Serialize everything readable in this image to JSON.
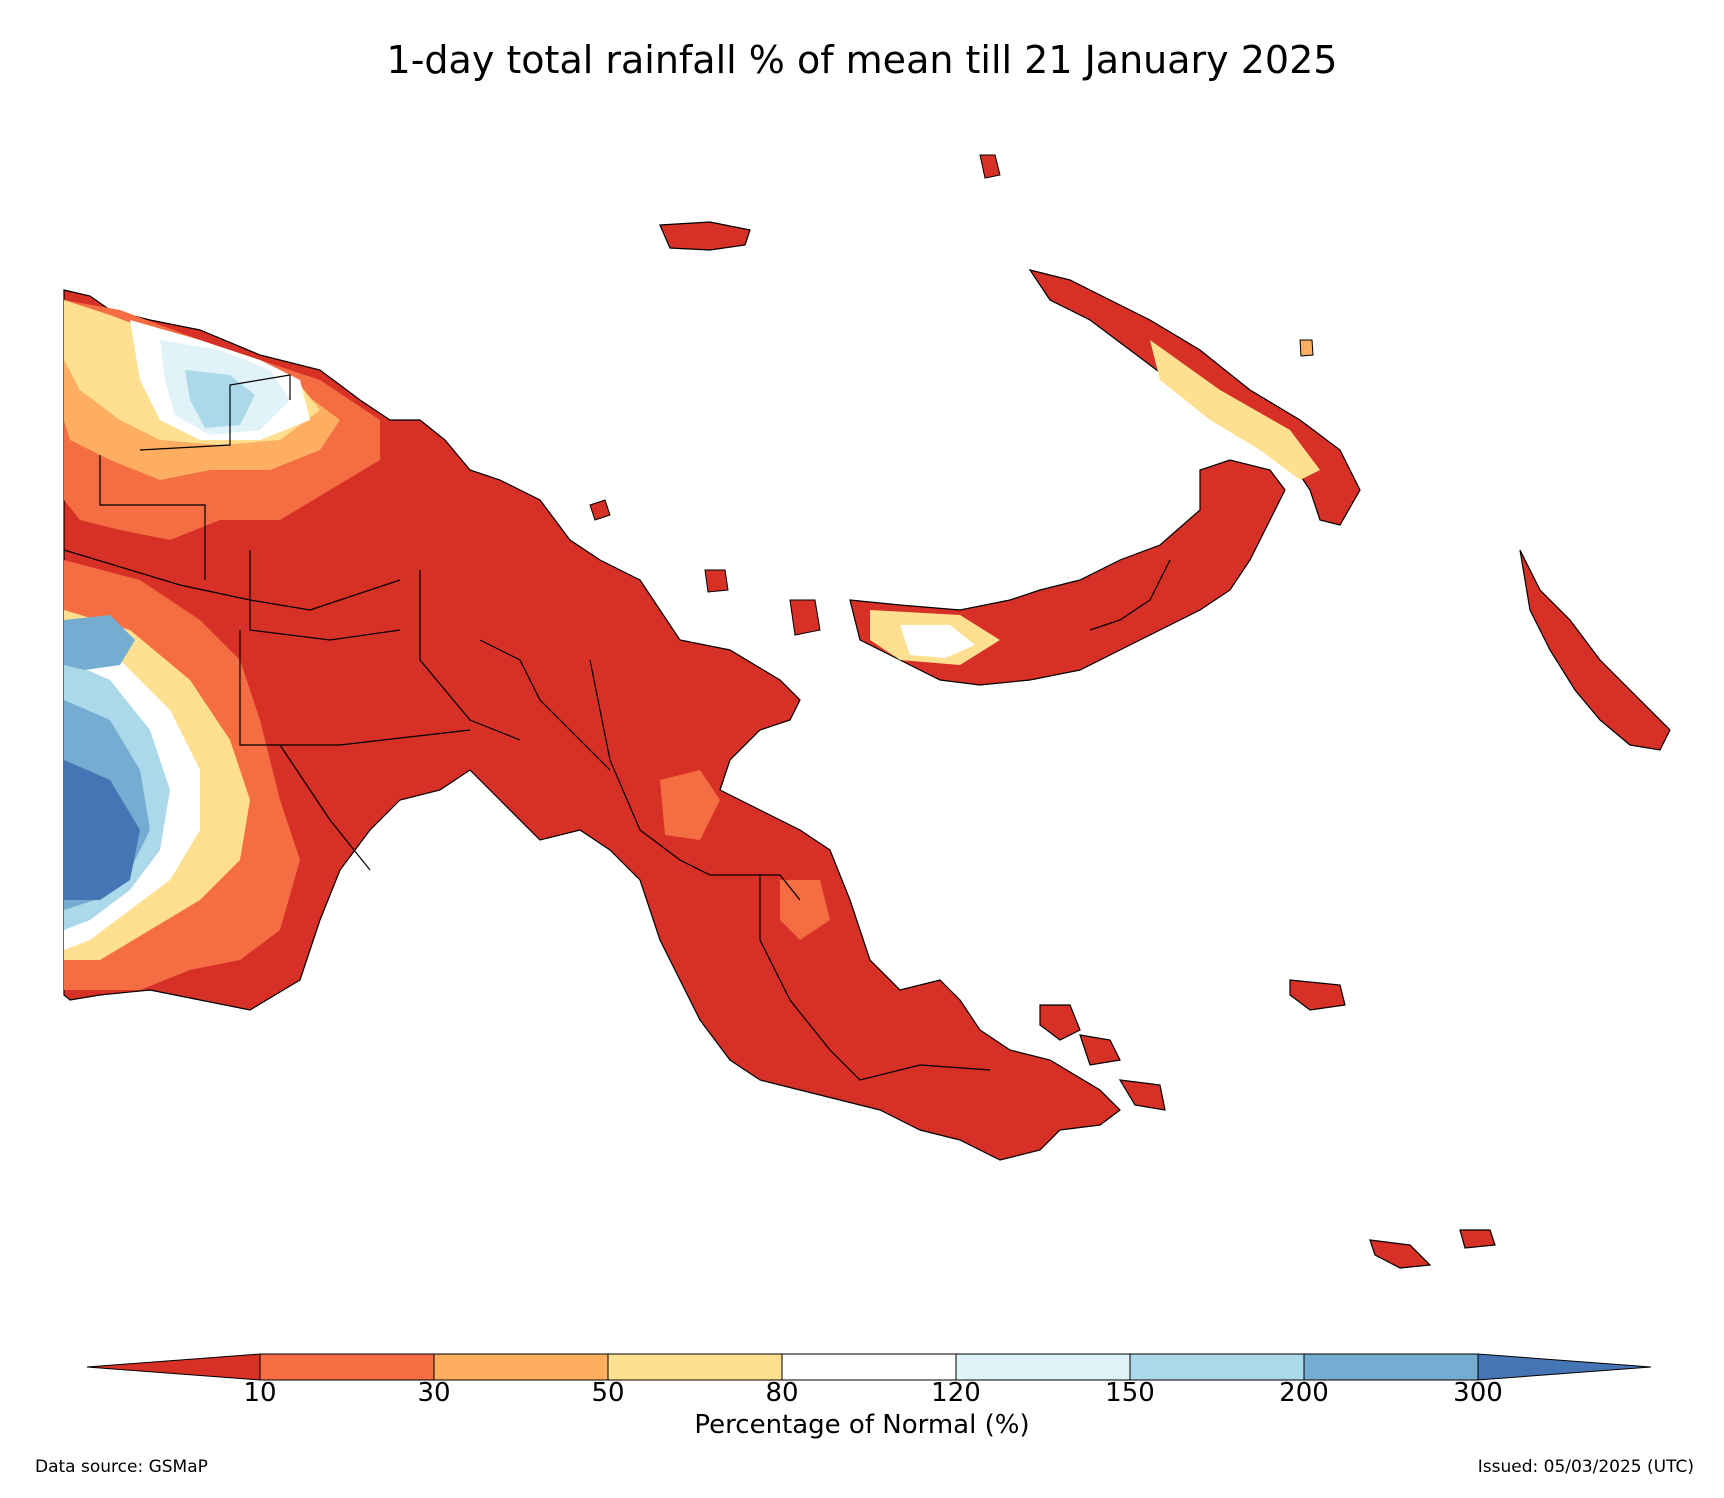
{
  "title": "1-day total rainfall % of mean till 21 January 2025",
  "colorbar": {
    "label": "Percentage of Normal (%)",
    "ticks": [
      "10",
      "30",
      "50",
      "80",
      "120",
      "150",
      "200",
      "300"
    ],
    "colors": {
      "below_10": "#d73027",
      "10_30": "#f46d43",
      "30_50": "#fdae61",
      "50_80": "#fee090",
      "80_120": "#ffffff",
      "120_150": "#e0f3f8",
      "150_200": "#abd9e9",
      "200_300": "#74add1",
      "above_300": "#4575b4"
    }
  },
  "footer": {
    "source": "Data source: GSMaP",
    "issued": "Issued: 05/03/2025 (UTC)"
  },
  "map": {
    "region": "Papua New Guinea",
    "dominant_category": "below_10"
  }
}
